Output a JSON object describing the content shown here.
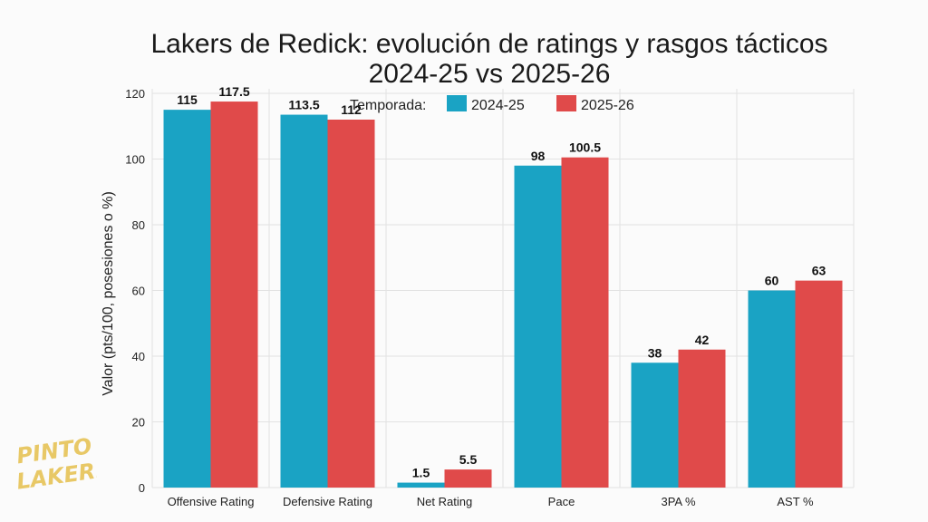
{
  "chart_data": {
    "type": "bar",
    "title_lines": [
      "Lakers de Redick: evolución de ratings y rasgos tácticos",
      "2024-25 vs 2025-26"
    ],
    "ylabel": "Valor (pts/100, posesiones o %)",
    "xlabel": "",
    "categories": [
      "Offensive Rating",
      "Defensive Rating",
      "Net Rating",
      "Pace",
      "3PA %",
      "AST %"
    ],
    "series": [
      {
        "name": "2024-25",
        "values": [
          115,
          113.5,
          1.5,
          98,
          38,
          60
        ],
        "color": "#1aa3c4"
      },
      {
        "name": "2025-26",
        "values": [
          117.5,
          112,
          5.5,
          100.5,
          42,
          63
        ],
        "color": "#e04a4a"
      }
    ],
    "data_labels": [
      [
        "115",
        "113.5",
        "1.5",
        "98",
        "38",
        "60"
      ],
      [
        "117.5",
        "112",
        "5.5",
        "100.5",
        "42",
        "63"
      ]
    ],
    "yticks": [
      "0",
      "20",
      "40",
      "60",
      "80",
      "100",
      "120"
    ],
    "ytick_values": [
      0,
      20,
      40,
      60,
      80,
      100,
      120
    ],
    "ylim": [
      0,
      120
    ],
    "grid": true,
    "legend": {
      "title": "Temporada:",
      "placement": "top-center"
    }
  },
  "watermark": {
    "lines": [
      "PINTO",
      "LAKERS"
    ]
  }
}
